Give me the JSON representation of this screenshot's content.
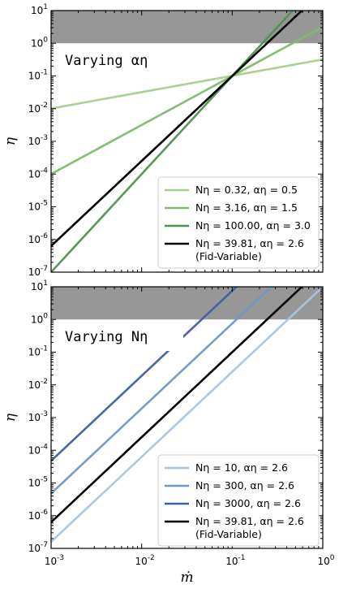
{
  "chart_data": [
    {
      "type": "line",
      "panel_title": "Varying αη",
      "xlabel": "",
      "ylabel": "η",
      "xscale": "log",
      "yscale": "log",
      "xlim": [
        0.001,
        1
      ],
      "ylim": [
        1e-07,
        10
      ],
      "x_tick_labels": [],
      "y_tick_labels": [
        {
          "base": "10",
          "exp": "-7",
          "value": 1e-07
        },
        {
          "base": "10",
          "exp": "-6",
          "value": 1e-06
        },
        {
          "base": "10",
          "exp": "-5",
          "value": 1e-05
        },
        {
          "base": "10",
          "exp": "-4",
          "value": 0.0001
        },
        {
          "base": "10",
          "exp": "-3",
          "value": 0.001
        },
        {
          "base": "10",
          "exp": "-2",
          "value": 0.01
        },
        {
          "base": "10",
          "exp": "-1",
          "value": 0.1
        },
        {
          "base": "10",
          "exp": "0",
          "value": 1
        },
        {
          "base": "10",
          "exp": "1",
          "value": 10
        }
      ],
      "shaded_region": {
        "y_from": 1,
        "y_to": 10,
        "color": "#8c8c8c"
      },
      "legend_position": "lower-right",
      "series": [
        {
          "name": "Nη = 0.32, αη = 0.5",
          "N": 0.32,
          "alpha": 0.5,
          "color": "#a8d08d",
          "fid_note": ""
        },
        {
          "name": "Nη = 3.16, αη = 1.5",
          "N": 3.16,
          "alpha": 1.5,
          "color": "#7dbb6a",
          "fid_note": ""
        },
        {
          "name": "Nη = 100.00, αη = 3.0",
          "N": 100.0,
          "alpha": 3.0,
          "color": "#4e9150",
          "fid_note": ""
        },
        {
          "name": "Nη = 39.81, αη = 2.6",
          "N": 39.81,
          "alpha": 2.6,
          "color": "#000000",
          "fid_note": "(Fid-Variable)"
        }
      ]
    },
    {
      "type": "line",
      "panel_title": "Varying Nη",
      "xlabel": "ṁ",
      "ylabel": "η",
      "xscale": "log",
      "yscale": "log",
      "xlim": [
        0.001,
        1
      ],
      "ylim": [
        1e-07,
        10
      ],
      "x_tick_labels": [
        {
          "base": "10",
          "exp": "-3",
          "value": 0.001
        },
        {
          "base": "10",
          "exp": "-2",
          "value": 0.01
        },
        {
          "base": "10",
          "exp": "-1",
          "value": 0.1
        },
        {
          "base": "10",
          "exp": "0",
          "value": 1
        }
      ],
      "y_tick_labels": [
        {
          "base": "10",
          "exp": "-7",
          "value": 1e-07
        },
        {
          "base": "10",
          "exp": "-6",
          "value": 1e-06
        },
        {
          "base": "10",
          "exp": "-5",
          "value": 1e-05
        },
        {
          "base": "10",
          "exp": "-4",
          "value": 0.0001
        },
        {
          "base": "10",
          "exp": "-3",
          "value": 0.001
        },
        {
          "base": "10",
          "exp": "-2",
          "value": 0.01
        },
        {
          "base": "10",
          "exp": "-1",
          "value": 0.1
        },
        {
          "base": "10",
          "exp": "0",
          "value": 1
        },
        {
          "base": "10",
          "exp": "1",
          "value": 10
        }
      ],
      "shaded_region": {
        "y_from": 1,
        "y_to": 10,
        "color": "#8c8c8c"
      },
      "legend_position": "lower-right",
      "series": [
        {
          "name": "Nη = 10, αη = 2.6",
          "N": 10,
          "alpha": 2.6,
          "color": "#a9c4de",
          "fid_note": ""
        },
        {
          "name": "Nη = 300, αη = 2.6",
          "N": 300,
          "alpha": 2.6,
          "color": "#6f97c4",
          "fid_note": ""
        },
        {
          "name": "Nη = 3000, αη = 2.6",
          "N": 3000,
          "alpha": 2.6,
          "color": "#3d5f9e",
          "fid_note": ""
        },
        {
          "name": "Nη = 39.81, αη = 2.6",
          "N": 39.81,
          "alpha": 2.6,
          "color": "#000000",
          "fid_note": "(Fid-Variable)"
        }
      ]
    }
  ]
}
